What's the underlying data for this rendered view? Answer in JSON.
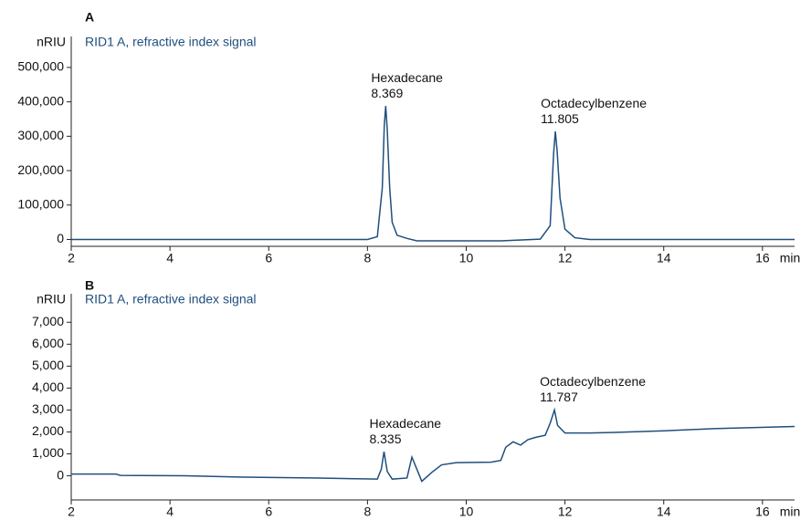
{
  "chart_data": [
    {
      "type": "line",
      "title": "A",
      "ylabel": "nRIU",
      "xlabel": "min",
      "x": [
        2,
        7,
        8.0,
        8.2,
        8.3,
        8.34,
        8.369,
        8.4,
        8.45,
        8.5,
        8.6,
        8.8,
        9.0,
        10.7,
        11.5,
        11.7,
        11.77,
        11.805,
        11.84,
        11.9,
        12.0,
        12.2,
        12.5,
        16.65
      ],
      "series": [
        {
          "name": "RID1 A, refractive index signal",
          "color": "#1f4f7f",
          "values": [
            0,
            0,
            0,
            8000,
            150000,
            330000,
            388000,
            320000,
            150000,
            50000,
            12000,
            3000,
            -4000,
            -4000,
            1000,
            40000,
            250000,
            314000,
            260000,
            120000,
            30000,
            5000,
            0,
            0
          ]
        }
      ],
      "annotations": [
        {
          "text": "Hexadecane",
          "x": 8.369
        },
        {
          "text": "Octadecylbenzene",
          "x": 11.805
        }
      ],
      "xlim": [
        2,
        16.65
      ],
      "xticks": [
        2,
        4,
        6,
        8,
        10,
        12,
        14,
        16
      ],
      "ylim": [
        -20000,
        590000
      ],
      "yticks": [
        0,
        {
          "value": 100000,
          "label": "100,000"
        },
        {
          "value": 200000,
          "label": "200,000"
        },
        {
          "value": 300000,
          "label": "300,000"
        },
        {
          "value": 400000,
          "label": "400,000"
        },
        {
          "value": 500000,
          "label": "500,000"
        }
      ]
    },
    {
      "type": "line",
      "title": "B",
      "ylabel": "nRIU",
      "xlabel": "min",
      "x": [
        2,
        2.9,
        3,
        4.3,
        5.5,
        7,
        8.2,
        8.28,
        8.335,
        8.4,
        8.5,
        8.8,
        8.9,
        9.0,
        9.1,
        9.3,
        9.5,
        9.8,
        10.5,
        10.7,
        10.8,
        10.95,
        11.1,
        11.25,
        11.4,
        11.6,
        11.7,
        11.787,
        11.85,
        12.0,
        12.5,
        13,
        14,
        15,
        16.65
      ],
      "series": [
        {
          "name": "RID1 A, refractive index signal",
          "color": "#1f4f7f",
          "values": [
            80,
            80,
            20,
            0,
            -60,
            -100,
            -150,
            300,
            1100,
            200,
            -150,
            -100,
            850,
            300,
            -250,
            150,
            500,
            600,
            620,
            700,
            1300,
            1550,
            1400,
            1650,
            1750,
            1850,
            2400,
            3000,
            2300,
            1950,
            1950,
            1980,
            2050,
            2150,
            2250
          ]
        }
      ],
      "annotations": [
        {
          "text": "Hexadecane",
          "x": 8.335
        },
        {
          "text": "Octadecylbenzene",
          "x": 11.787
        }
      ],
      "xlim": [
        2,
        16.65
      ],
      "xticks": [
        2,
        4,
        6,
        8,
        10,
        12,
        14,
        16
      ],
      "ylim": [
        -1100,
        8300
      ],
      "yticks": [
        0,
        {
          "value": 1000,
          "label": "1,000"
        },
        {
          "value": 2000,
          "label": "2,000"
        },
        {
          "value": 3000,
          "label": "3,000"
        },
        {
          "value": 4000,
          "label": "4,000"
        },
        {
          "value": 5000,
          "label": "5,000"
        },
        {
          "value": 6000,
          "label": "6,000"
        },
        {
          "value": 7000,
          "label": "7,000"
        }
      ]
    }
  ]
}
